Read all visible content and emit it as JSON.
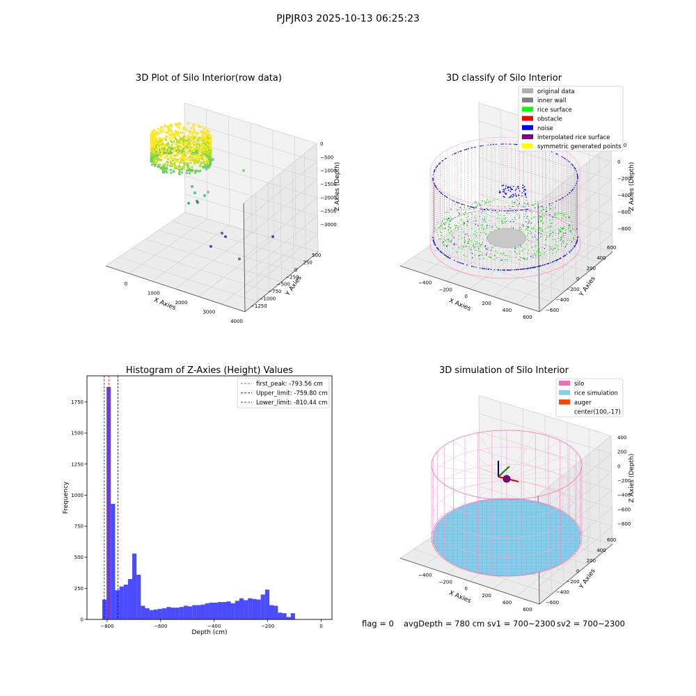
{
  "figure": {
    "suptitle": "PJPJR03 2025-10-13 06:25:23",
    "footer": {
      "flag": "flag = 0",
      "avg_depth": "avgDepth = 780 cm",
      "sv1": "sv1 = 700~2300",
      "sv2": "sv2 = 700~2300"
    }
  },
  "chart_data": [
    {
      "type": "scatter3d",
      "title": "3D Plot of Silo Interior(row data)",
      "xlabel": "X Axies",
      "ylabel": "Y Axies",
      "zlabel": "Z Axies (Depth)",
      "x_ticks": [
        "0",
        "1000",
        "2000",
        "3000",
        "4000"
      ],
      "y_ticks": [
        "500",
        "250",
        "0",
        "−250",
        "−500",
        "−750",
        "−1000",
        "−1250"
      ],
      "z_ticks": [
        "0",
        "−500",
        "−1000",
        "−1500",
        "−2000",
        "−2500",
        "−3000"
      ],
      "colormap": "viridis"
    },
    {
      "type": "scatter3d",
      "title": "3D classify of Silo Interior",
      "xlabel": "X Axies",
      "ylabel": "Y Axies",
      "zlabel": "Z Axies (Depth)",
      "x_ticks": [
        "−400",
        "−200",
        "0",
        "200",
        "400",
        "600"
      ],
      "y_ticks": [
        "600",
        "400",
        "200",
        "0",
        "−200",
        "−400",
        "−600"
      ],
      "z_ticks": [
        "200",
        "0",
        "−200",
        "−400",
        "−600",
        "−800"
      ],
      "legend_position": "upper-right",
      "legend": [
        {
          "label": "original data",
          "color": "#b0b0b0"
        },
        {
          "label": "inner wall",
          "color": "#808080"
        },
        {
          "label": "rice surface",
          "color": "#00ff00"
        },
        {
          "label": "obstacle",
          "color": "#ff0000"
        },
        {
          "label": "noise",
          "color": "#0000ff"
        },
        {
          "label": "interpolated rice surface",
          "color": "#800080"
        },
        {
          "label": "symmetric generated points",
          "color": "#ffff00"
        }
      ]
    },
    {
      "type": "bar",
      "title": "Histogram of Z-Axies (Height) Values",
      "xlabel": "Depth (cm)",
      "ylabel": "Frequency",
      "xlim": [
        -875,
        40
      ],
      "ylim": [
        0,
        1960
      ],
      "x_ticks": [
        -800,
        -600,
        -400,
        -200,
        0
      ],
      "y_ticks": [
        0,
        250,
        500,
        750,
        1000,
        1250,
        1500,
        1750
      ],
      "bar_color": "#0000ff",
      "bin_start": -818,
      "bin_width": 16,
      "values": [
        160,
        1870,
        930,
        235,
        265,
        280,
        325,
        530,
        360,
        110,
        90,
        75,
        80,
        85,
        90,
        100,
        95,
        95,
        100,
        110,
        105,
        115,
        115,
        120,
        130,
        135,
        135,
        140,
        140,
        145,
        130,
        150,
        170,
        155,
        170,
        165,
        160,
        200,
        240,
        115,
        110,
        55,
        50,
        20,
        50
      ],
      "lines": [
        {
          "label": "first_peak: -793.56 cm",
          "value": -793.56,
          "color": "#ff0000"
        },
        {
          "label": "Upper_limit: -759.80 cm",
          "value": -759.8,
          "color": "#000000"
        },
        {
          "label": "Lower_limit: -810.44 cm",
          "value": -810.44,
          "color": "#0000ff"
        }
      ],
      "legend_position": "upper-right"
    },
    {
      "type": "surface3d",
      "title": "3D simulation of Silo Interior",
      "xlabel": "X Axies",
      "ylabel": "Y Axies",
      "zlabel": "Z Axies (Depth)",
      "x_ticks": [
        "−400",
        "−200",
        "0",
        "200",
        "400",
        "600"
      ],
      "y_ticks": [
        "600",
        "400",
        "200",
        "0",
        "−200",
        "−400",
        "−600"
      ],
      "z_ticks": [
        "400",
        "200",
        "0",
        "−200",
        "−400",
        "−600",
        "−800"
      ],
      "legend_position": "upper-right",
      "legend": [
        {
          "label": "silo",
          "color": "#ff69b4"
        },
        {
          "label": "rice simulation",
          "color": "#87ceeb"
        },
        {
          "label": "auger",
          "color": "#ff4500"
        },
        {
          "label": "center(100,-17)",
          "color": ""
        }
      ]
    }
  ]
}
